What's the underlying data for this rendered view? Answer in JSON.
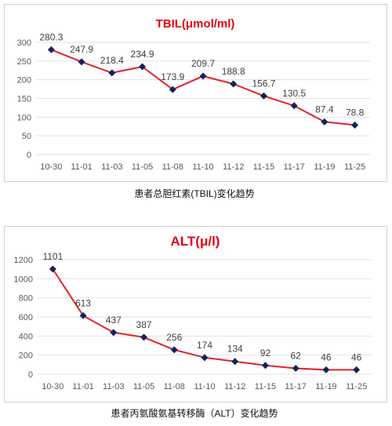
{
  "chart_data": [
    {
      "type": "line",
      "title": "TBIL(μmol/ml)",
      "categories": [
        "10-30",
        "11-01",
        "11-03",
        "11-05",
        "11-08",
        "11-10",
        "11-12",
        "11-15",
        "11-17",
        "11-19",
        "11-25"
      ],
      "values": [
        280.3,
        247.9,
        218.4,
        234.9,
        173.9,
        209.7,
        188.8,
        156.7,
        130.5,
        87.4,
        78.8
      ],
      "ylim": [
        0,
        300
      ],
      "yticks": [
        0,
        50,
        100,
        150,
        200,
        250,
        300
      ],
      "grid": true,
      "legend": "none",
      "data_labels": true,
      "colors": {
        "title": "#e60012",
        "line": "#e0232b",
        "marker": "#10235a"
      }
    },
    {
      "type": "line",
      "title": "ALT(μ/l)",
      "categories": [
        "10-30",
        "11-01",
        "11-03",
        "11-05",
        "11-08",
        "11-10",
        "11-12",
        "11-15",
        "11-17",
        "11-19",
        "11-25"
      ],
      "values": [
        1101,
        613,
        437,
        387,
        256,
        174,
        134,
        92,
        62,
        46,
        46
      ],
      "ylim": [
        0,
        1200
      ],
      "yticks": [
        0,
        200,
        400,
        600,
        800,
        1000,
        1200
      ],
      "grid": true,
      "legend": "none",
      "data_labels": true,
      "colors": {
        "title": "#e60012",
        "line": "#e0232b",
        "marker": "#10235a"
      }
    }
  ],
  "captions": {
    "tbil": "患者总胆红素(TBIL)变化趋势",
    "alt": "患者丙氨酸氨基转移酶（ALT）变化趋势"
  }
}
